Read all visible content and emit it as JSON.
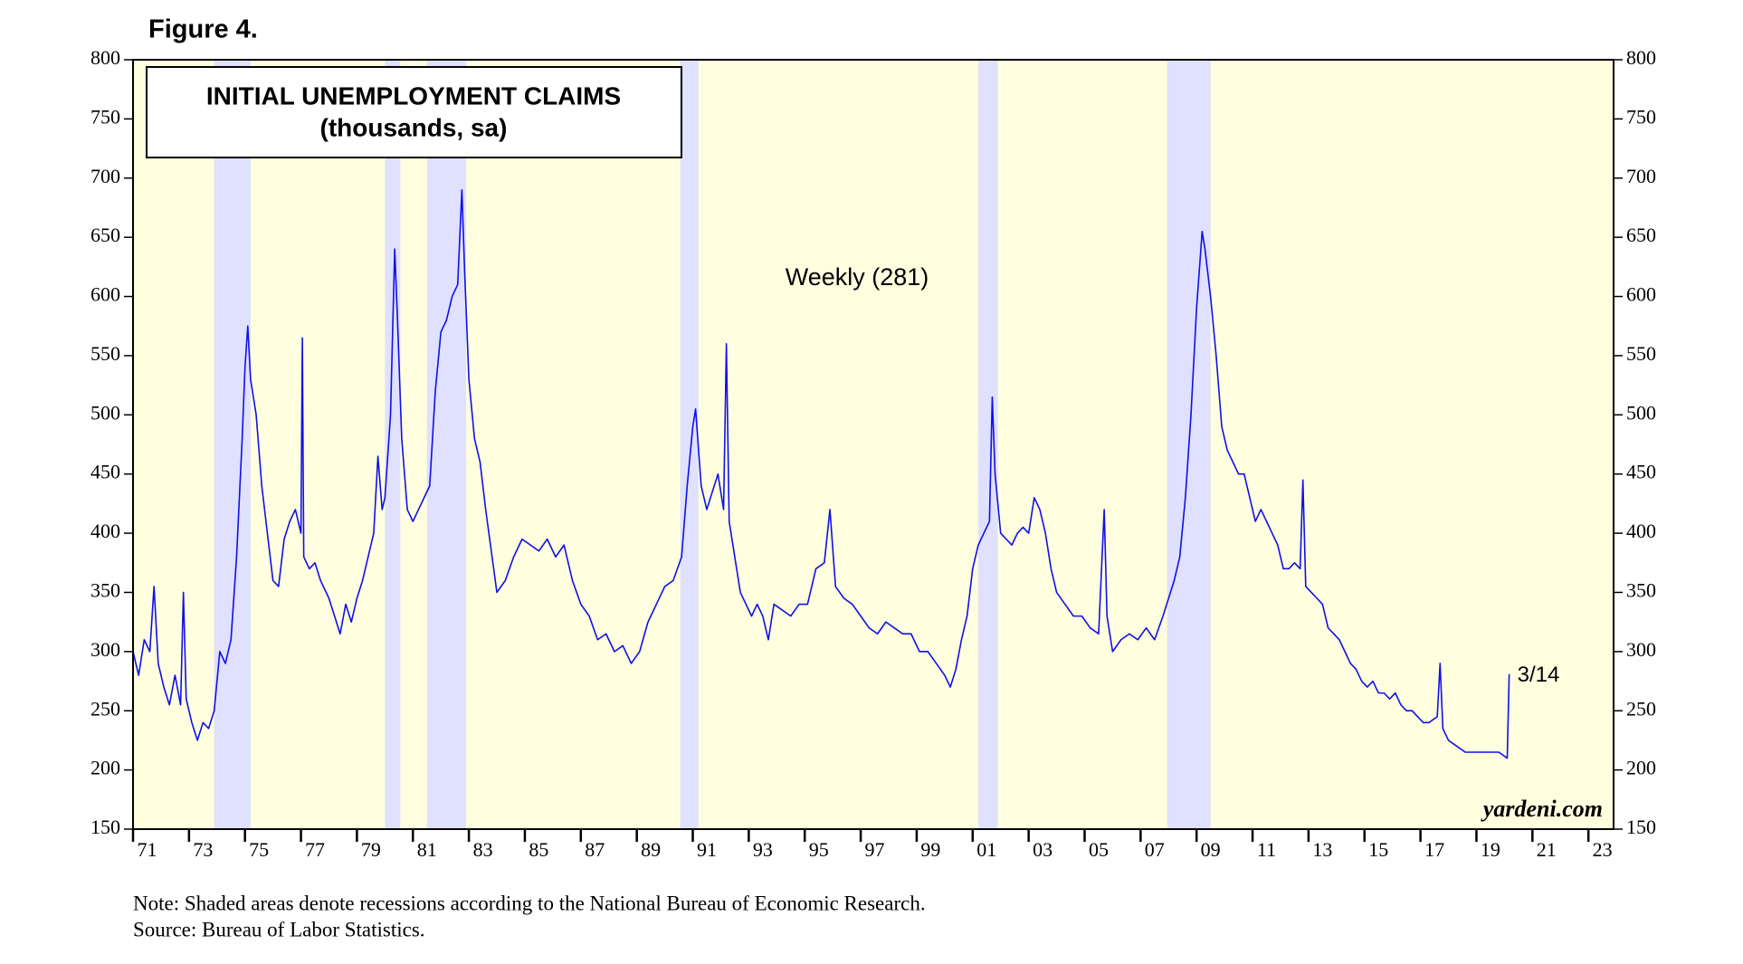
{
  "chart_data": {
    "type": "line",
    "figure_label": "Figure 4.",
    "title": "INITIAL UNEMPLOYMENT CLAIMS",
    "subtitle": "(thousands, sa)",
    "last_label": "3/14",
    "brand": "yardeni.com",
    "notes": [
      "Note: Shaded areas denote recessions according to the National Bureau of Economic Research.",
      "Source: Bureau of Labor Statistics."
    ],
    "plot_background": "#ffffe0",
    "recession_color": "#e0e0ff",
    "recessions": [
      [
        1973.9,
        1975.2
      ],
      [
        1980.0,
        1980.55
      ],
      [
        1981.5,
        1982.9
      ],
      [
        1990.55,
        1991.2
      ],
      [
        2001.2,
        2001.9
      ],
      [
        2007.95,
        2009.5
      ]
    ],
    "xlim": [
      1971,
      2023.9
    ],
    "xticks": [
      {
        "value": 1971,
        "label": "71"
      },
      {
        "value": 1973,
        "label": "73"
      },
      {
        "value": 1975,
        "label": "75"
      },
      {
        "value": 1977,
        "label": "77"
      },
      {
        "value": 1979,
        "label": "79"
      },
      {
        "value": 1981,
        "label": "81"
      },
      {
        "value": 1983,
        "label": "83"
      },
      {
        "value": 1985,
        "label": "85"
      },
      {
        "value": 1987,
        "label": "87"
      },
      {
        "value": 1989,
        "label": "89"
      },
      {
        "value": 1991,
        "label": "91"
      },
      {
        "value": 1993,
        "label": "93"
      },
      {
        "value": 1995,
        "label": "95"
      },
      {
        "value": 1997,
        "label": "97"
      },
      {
        "value": 1999,
        "label": "99"
      },
      {
        "value": 2001,
        "label": "01"
      },
      {
        "value": 2003,
        "label": "03"
      },
      {
        "value": 2005,
        "label": "05"
      },
      {
        "value": 2007,
        "label": "07"
      },
      {
        "value": 2009,
        "label": "09"
      },
      {
        "value": 2011,
        "label": "11"
      },
      {
        "value": 2013,
        "label": "13"
      },
      {
        "value": 2015,
        "label": "15"
      },
      {
        "value": 2017,
        "label": "17"
      },
      {
        "value": 2019,
        "label": "19"
      },
      {
        "value": 2021,
        "label": "21"
      },
      {
        "value": 2023,
        "label": "23"
      }
    ],
    "ylim": [
      150,
      800
    ],
    "yticks": [
      150,
      200,
      250,
      300,
      350,
      400,
      450,
      500,
      550,
      600,
      650,
      700,
      750,
      800
    ],
    "x": [
      1971.0,
      1971.2,
      1971.4,
      1971.6,
      1971.75,
      1971.9,
      1972.1,
      1972.3,
      1972.5,
      1972.7,
      1972.8,
      1972.9,
      1973.1,
      1973.3,
      1973.5,
      1973.7,
      1973.9,
      1974.1,
      1974.3,
      1974.5,
      1974.7,
      1974.9,
      1975.0,
      1975.1,
      1975.2,
      1975.4,
      1975.6,
      1975.8,
      1976.0,
      1976.2,
      1976.4,
      1976.6,
      1976.8,
      1977.0,
      1977.05,
      1977.1,
      1977.3,
      1977.5,
      1977.7,
      1978.0,
      1978.2,
      1978.4,
      1978.6,
      1978.8,
      1979.0,
      1979.2,
      1979.4,
      1979.6,
      1979.75,
      1979.9,
      1980.0,
      1980.2,
      1980.35,
      1980.45,
      1980.6,
      1980.8,
      1981.0,
      1981.2,
      1981.4,
      1981.6,
      1981.8,
      1982.0,
      1982.2,
      1982.4,
      1982.6,
      1982.75,
      1982.85,
      1983.0,
      1983.2,
      1983.4,
      1983.6,
      1983.8,
      1984.0,
      1984.3,
      1984.6,
      1984.9,
      1985.2,
      1985.5,
      1985.8,
      1986.1,
      1986.4,
      1986.7,
      1987.0,
      1987.3,
      1987.6,
      1987.9,
      1988.2,
      1988.5,
      1988.8,
      1989.1,
      1989.4,
      1989.7,
      1990.0,
      1990.3,
      1990.6,
      1990.8,
      1991.0,
      1991.1,
      1991.3,
      1991.5,
      1991.7,
      1991.9,
      1992.1,
      1992.2,
      1992.3,
      1992.5,
      1992.7,
      1992.9,
      1993.1,
      1993.3,
      1993.5,
      1993.7,
      1993.9,
      1994.2,
      1994.5,
      1994.8,
      1995.1,
      1995.4,
      1995.7,
      1995.9,
      1996.1,
      1996.4,
      1996.7,
      1997.0,
      1997.3,
      1997.6,
      1997.9,
      1998.2,
      1998.5,
      1998.8,
      1999.1,
      1999.4,
      1999.7,
      2000.0,
      2000.2,
      2000.4,
      2000.6,
      2000.8,
      2001.0,
      2001.2,
      2001.4,
      2001.6,
      2001.7,
      2001.8,
      2002.0,
      2002.2,
      2002.4,
      2002.6,
      2002.8,
      2003.0,
      2003.2,
      2003.4,
      2003.6,
      2003.8,
      2004.0,
      2004.3,
      2004.6,
      2004.9,
      2005.2,
      2005.5,
      2005.7,
      2005.8,
      2006.0,
      2006.3,
      2006.6,
      2006.9,
      2007.2,
      2007.5,
      2007.8,
      2008.0,
      2008.2,
      2008.4,
      2008.6,
      2008.8,
      2009.0,
      2009.2,
      2009.3,
      2009.5,
      2009.7,
      2009.9,
      2010.1,
      2010.3,
      2010.5,
      2010.7,
      2010.9,
      2011.1,
      2011.3,
      2011.5,
      2011.7,
      2011.9,
      2012.1,
      2012.3,
      2012.5,
      2012.7,
      2012.8,
      2012.9,
      2013.1,
      2013.3,
      2013.5,
      2013.7,
      2013.9,
      2014.1,
      2014.3,
      2014.5,
      2014.7,
      2014.9,
      2015.1,
      2015.3,
      2015.5,
      2015.7,
      2015.9,
      2016.1,
      2016.3,
      2016.5,
      2016.7,
      2016.9,
      2017.1,
      2017.3,
      2017.6,
      2017.7,
      2017.8,
      2018.0,
      2018.3,
      2018.6,
      2018.9,
      2019.2,
      2019.5,
      2019.8,
      2020.1,
      2020.17
    ],
    "series": [
      {
        "name": "Weekly (281)",
        "color": "#1010e8",
        "values": [
          300,
          280,
          310,
          300,
          355,
          290,
          270,
          255,
          280,
          255,
          350,
          260,
          240,
          225,
          240,
          235,
          250,
          300,
          290,
          310,
          380,
          480,
          540,
          575,
          530,
          500,
          440,
          400,
          360,
          355,
          395,
          410,
          420,
          400,
          565,
          380,
          370,
          375,
          360,
          345,
          330,
          315,
          340,
          325,
          345,
          360,
          380,
          400,
          465,
          420,
          430,
          500,
          640,
          580,
          480,
          420,
          410,
          420,
          430,
          440,
          520,
          570,
          580,
          600,
          610,
          690,
          620,
          530,
          480,
          460,
          420,
          385,
          350,
          360,
          380,
          395,
          390,
          385,
          395,
          380,
          390,
          360,
          340,
          330,
          310,
          315,
          300,
          305,
          290,
          300,
          325,
          340,
          355,
          360,
          380,
          440,
          490,
          505,
          440,
          420,
          435,
          450,
          420,
          560,
          410,
          380,
          350,
          340,
          330,
          340,
          330,
          310,
          340,
          335,
          330,
          340,
          340,
          370,
          375,
          420,
          355,
          345,
          340,
          330,
          320,
          315,
          325,
          320,
          315,
          315,
          300,
          300,
          290,
          280,
          270,
          285,
          310,
          330,
          370,
          390,
          400,
          410,
          515,
          450,
          400,
          395,
          390,
          400,
          405,
          400,
          430,
          420,
          400,
          370,
          350,
          340,
          330,
          330,
          320,
          315,
          420,
          330,
          300,
          310,
          315,
          310,
          320,
          310,
          330,
          345,
          360,
          380,
          430,
          500,
          590,
          655,
          640,
          600,
          550,
          490,
          470,
          460,
          450,
          450,
          430,
          410,
          420,
          410,
          400,
          390,
          370,
          370,
          375,
          370,
          445,
          355,
          350,
          345,
          340,
          320,
          315,
          310,
          300,
          290,
          285,
          275,
          270,
          275,
          265,
          265,
          260,
          265,
          255,
          250,
          250,
          245,
          240,
          240,
          245,
          290,
          235,
          225,
          220,
          215,
          215,
          215,
          215,
          215,
          210,
          281
        ]
      }
    ]
  }
}
